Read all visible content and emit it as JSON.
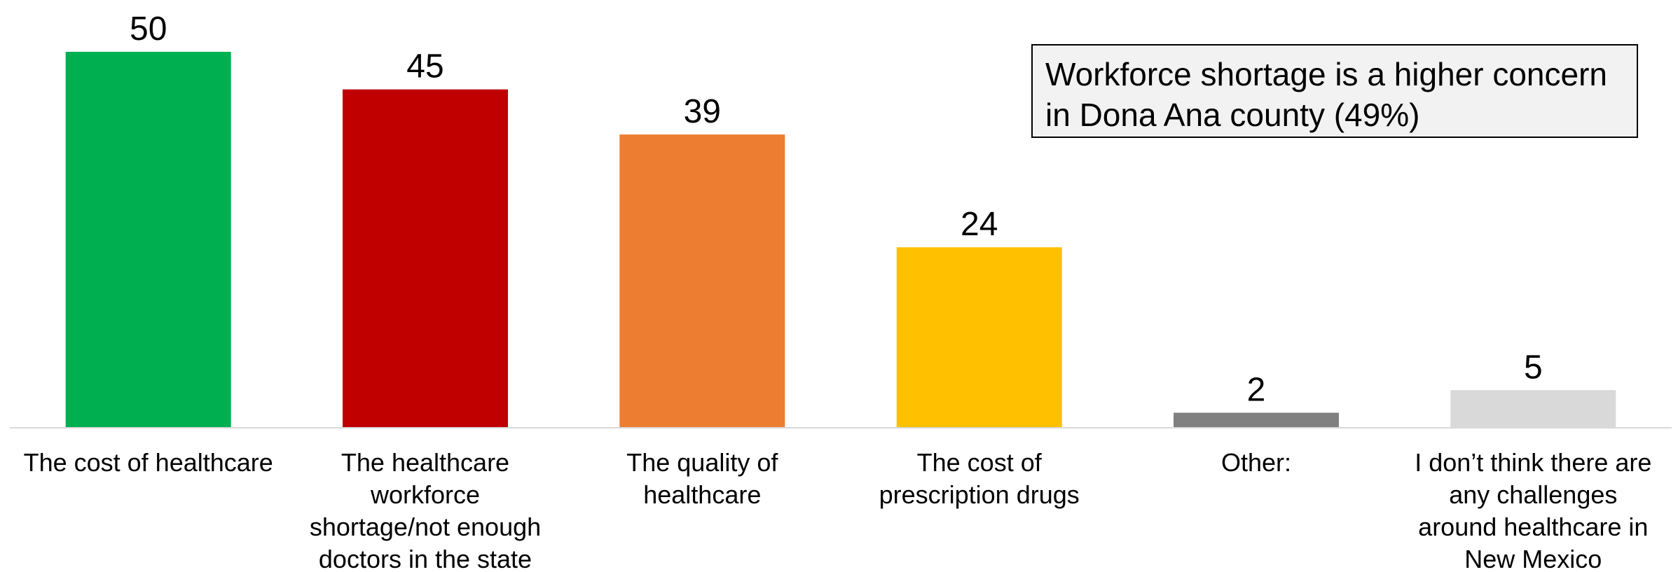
{
  "callout": {
    "text": "Workforce shortage is a higher concern in Dona Ana county (49%)"
  },
  "chart_data": {
    "type": "bar",
    "title": "",
    "xlabel": "",
    "ylabel": "",
    "ylim": [
      0,
      50
    ],
    "grid": false,
    "legend": "none",
    "categories": [
      "The cost of healthcare",
      "The healthcare workforce shortage/not enough doctors in the state",
      "The quality of healthcare",
      "The cost of prescription drugs",
      "Other:",
      "I don’t think there are any challenges around healthcare in New Mexico"
    ],
    "category_lines": [
      [
        "The cost of healthcare"
      ],
      [
        "The healthcare",
        "workforce",
        "shortage/not enough",
        "doctors in the state"
      ],
      [
        "The quality of",
        "healthcare"
      ],
      [
        "The cost of",
        "prescription drugs"
      ],
      [
        "Other:"
      ],
      [
        "I don’t think there are",
        "any challenges",
        "around healthcare in",
        "New Mexico"
      ]
    ],
    "values": [
      50,
      45,
      39,
      24,
      2,
      5
    ],
    "data_labels": [
      "50",
      "45",
      "39",
      "24",
      "2",
      "5"
    ],
    "colors": [
      "#00B050",
      "#C00000",
      "#ED7D31",
      "#FFC000",
      "#808080",
      "#D9D9D9"
    ]
  }
}
